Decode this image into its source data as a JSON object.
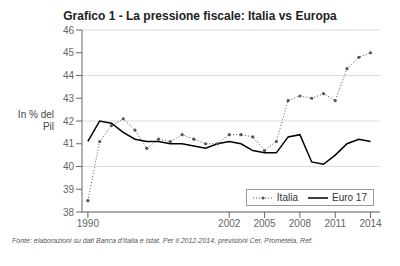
{
  "chart_data": {
    "type": "line",
    "title": "Grafico 1 - La pressione fiscale: Italia vs Europa",
    "y_label": "In % del\nPil",
    "footnote": "Fonte: elaborazioni su dati Banca d'Italia e Istat. Per il 2012-2014, previsioni Cer, Prometeia, Ref.",
    "x": [
      1990,
      1991,
      1992,
      1993,
      1994,
      1995,
      1996,
      1997,
      1998,
      1999,
      2000,
      2001,
      2002,
      2003,
      2004,
      2005,
      2006,
      2007,
      2008,
      2009,
      2010,
      2011,
      2012,
      2013,
      2014
    ],
    "series": [
      {
        "name": "Italia",
        "color": "#555555",
        "marker": "dot",
        "line_style": "dotted",
        "values": [
          38.5,
          41.1,
          41.8,
          42.1,
          41.6,
          40.8,
          41.2,
          41.1,
          41.4,
          41.2,
          41.0,
          41.0,
          41.4,
          41.4,
          41.3,
          40.7,
          41.1,
          42.9,
          43.1,
          43.0,
          43.2,
          42.9,
          44.3,
          44.8,
          45.0
        ]
      },
      {
        "name": "Euro 17",
        "color": "#000000",
        "marker": "none",
        "line_style": "solid",
        "values": [
          41.1,
          42.0,
          41.9,
          41.5,
          41.2,
          41.1,
          41.1,
          41.0,
          41.0,
          40.9,
          40.8,
          41.0,
          41.1,
          41.0,
          40.7,
          40.6,
          40.6,
          41.3,
          41.4,
          40.2,
          40.1,
          40.5,
          41.0,
          41.2,
          41.1
        ]
      }
    ],
    "xlim": [
      1989.5,
      2014.8
    ],
    "xticks": [
      1990,
      2002,
      2005,
      2008,
      2011,
      2014
    ],
    "ylim": [
      38,
      46
    ],
    "yticks": [
      38,
      39,
      40,
      41,
      42,
      43,
      44,
      45,
      46
    ],
    "grid": "y",
    "legend": "lower right"
  }
}
